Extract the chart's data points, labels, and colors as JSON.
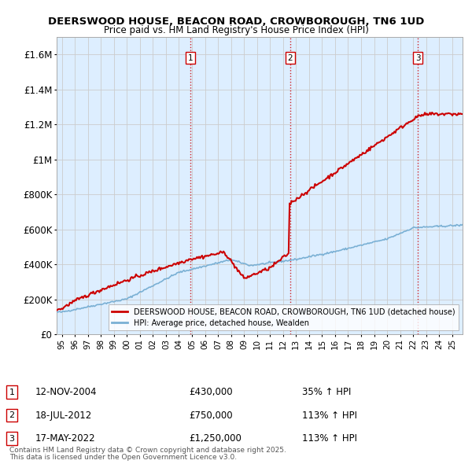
{
  "title": "DEERSWOOD HOUSE, BEACON ROAD, CROWBOROUGH, TN6 1UD",
  "subtitle": "Price paid vs. HM Land Registry's House Price Index (HPI)",
  "red_label": "DEERSWOOD HOUSE, BEACON ROAD, CROWBOROUGH, TN6 1UD (detached house)",
  "blue_label": "HPI: Average price, detached house, Wealden",
  "red_color": "#cc0000",
  "blue_color": "#7ab0d4",
  "grid_color": "#cccccc",
  "bg_color": "#ddeeff",
  "sale_markers": [
    {
      "num": 1,
      "year": 2004.87,
      "price": 430000,
      "date": "12-NOV-2004",
      "pct": "35%",
      "dir": "↑"
    },
    {
      "num": 2,
      "year": 2012.54,
      "price": 750000,
      "date": "18-JUL-2012",
      "pct": "113%",
      "dir": "↑"
    },
    {
      "num": 3,
      "year": 2022.37,
      "price": 1250000,
      "date": "17-MAY-2022",
      "pct": "113%",
      "dir": "↑"
    }
  ],
  "vline_color": "#cc0000",
  "ylim": [
    0,
    1700000
  ],
  "yticks": [
    0,
    200000,
    400000,
    600000,
    800000,
    1000000,
    1200000,
    1400000,
    1600000
  ],
  "ytick_labels": [
    "£0",
    "£200K",
    "£400K",
    "£600K",
    "£800K",
    "£1M",
    "£1.2M",
    "£1.4M",
    "£1.6M"
  ],
  "footer1": "Contains HM Land Registry data © Crown copyright and database right 2025.",
  "footer2": "This data is licensed under the Open Government Licence v3.0.",
  "xlim_start": 1994.6,
  "xlim_end": 2025.8,
  "fig_width": 6.0,
  "fig_height": 5.9,
  "dpi": 100
}
